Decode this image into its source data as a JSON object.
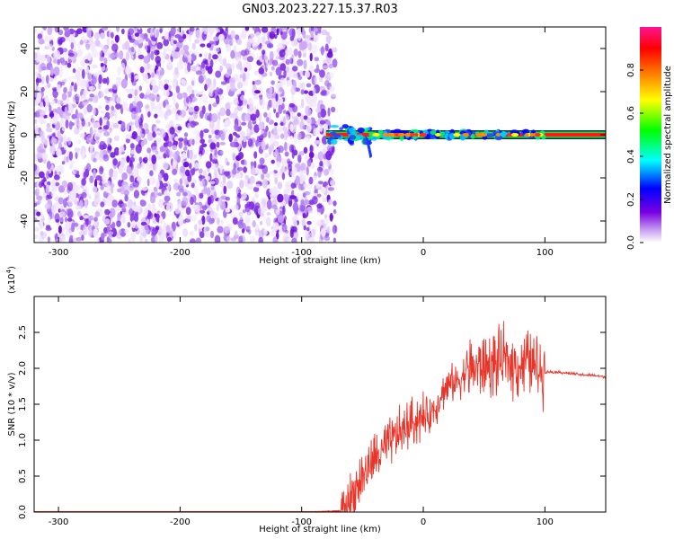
{
  "title": "GN03.2023.227.15.37.R03",
  "chart_data": [
    {
      "type": "heatmap",
      "xlabel": "Height of straight line (km)",
      "ylabel": "Frequency (Hz)",
      "xlim": [
        -320,
        150
      ],
      "ylim": [
        -50,
        50
      ],
      "x_ticks": [
        -300,
        -200,
        -100,
        0,
        100
      ],
      "y_ticks": [
        -40,
        -20,
        0,
        20,
        40
      ],
      "noise_region_x": [
        -320,
        -80
      ],
      "signal_x_start": -80,
      "signal_x_end": 100,
      "tone_frequency": 0,
      "colorbar": {
        "label": "Normalized spectral amplitude",
        "range": [
          0,
          1
        ],
        "ticks": [
          "0.0",
          "0.2",
          "0.4",
          "0.6",
          "0.8"
        ],
        "colormap": [
          "#ffffff",
          "#7a00e0",
          "#0000ff",
          "#00ffff",
          "#00ff00",
          "#ffff00",
          "#ff7f00",
          "#ff0000",
          "#ff1493"
        ]
      }
    },
    {
      "type": "line",
      "xlabel": "Height of straight line (km)",
      "ylabel": "SNR (10 * v/v)",
      "y_multiplier": "(x10",
      "y_multiplier_exp": "4",
      "y_multiplier_close": ")",
      "xlim": [
        -320,
        150
      ],
      "ylim": [
        0,
        3
      ],
      "x_ticks": [
        -300,
        -200,
        -100,
        0,
        100
      ],
      "y_ticks": [
        "0.0",
        "0.5",
        "1.0",
        "1.5",
        "2.0",
        "2.5"
      ],
      "line_color": "#e8352a",
      "series": [
        {
          "x": [
            -320,
            -100,
            -65,
            -60,
            -55,
            -50,
            -45,
            -40,
            -35,
            -30,
            -25,
            -20,
            -15,
            -10,
            -5,
            0,
            5,
            10,
            15,
            20,
            25,
            30,
            35,
            40,
            45,
            50,
            55,
            60,
            65,
            70,
            75,
            80,
            85,
            90,
            95,
            100,
            105,
            110,
            120,
            130,
            140,
            150
          ],
          "values": [
            0.0,
            0.0,
            0.02,
            0.2,
            0.35,
            0.5,
            0.6,
            0.75,
            0.8,
            0.9,
            1.0,
            1.1,
            1.15,
            1.25,
            1.3,
            1.3,
            1.35,
            1.45,
            1.65,
            1.75,
            1.8,
            1.85,
            1.95,
            2.0,
            2.0,
            2.02,
            2.05,
            2.05,
            2.1,
            2.1,
            2.05,
            2.05,
            2.1,
            2.05,
            2.0,
            1.95,
            1.95,
            1.95,
            1.93,
            1.91,
            1.9,
            1.88
          ]
        }
      ]
    }
  ]
}
